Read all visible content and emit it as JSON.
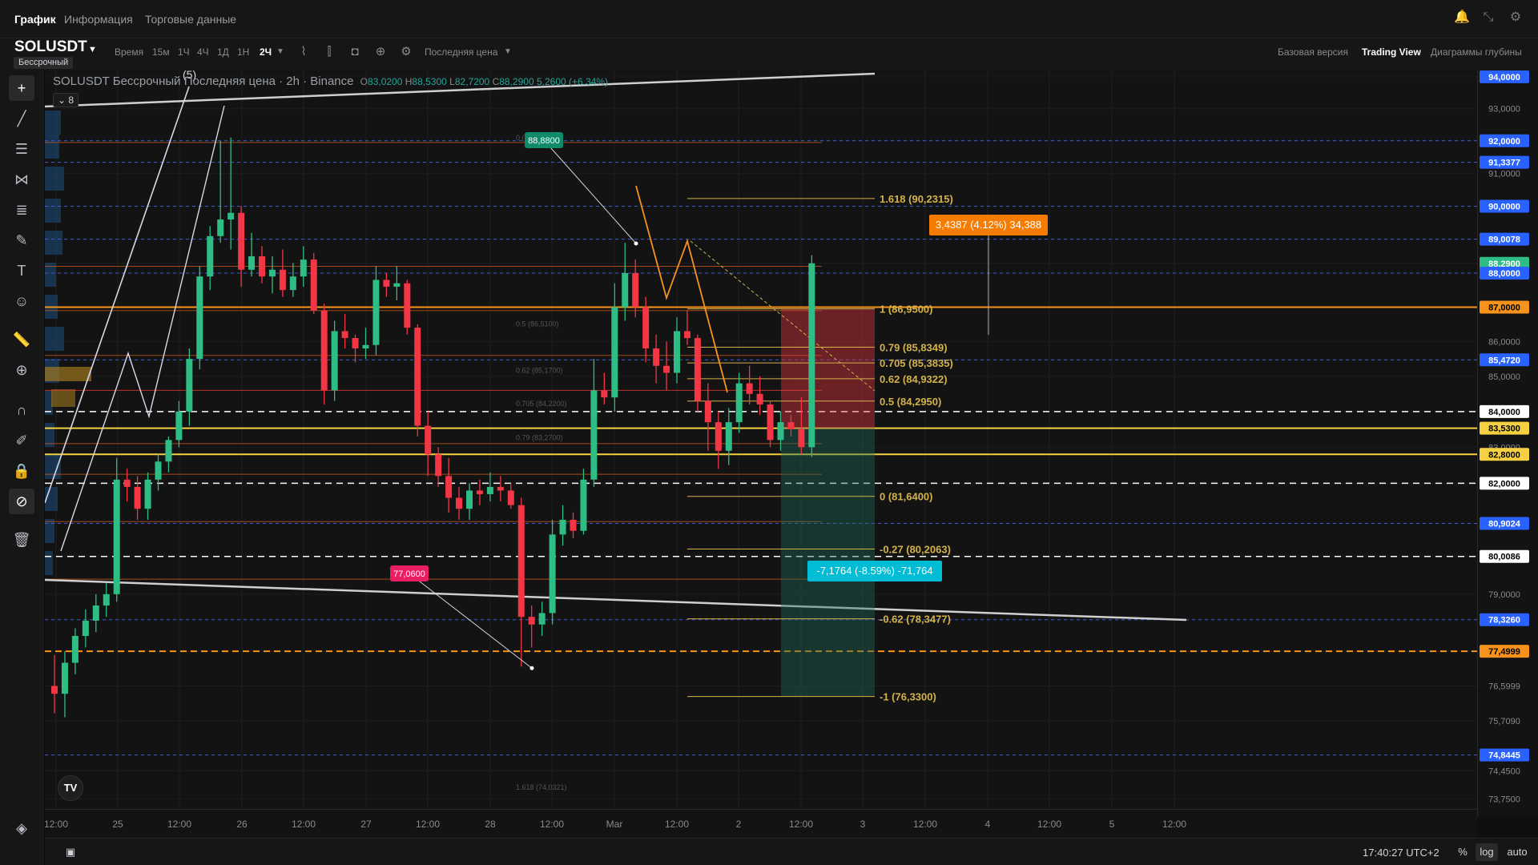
{
  "top_tabs": [
    {
      "label": "График"
    },
    {
      "label": "Информация"
    },
    {
      "label": "Торговые данные"
    }
  ],
  "toolbar": {
    "symbol": "SOLUSDT",
    "badge": "Бессрочный",
    "time_label": "Время",
    "intervals": [
      "15м",
      "1Ч",
      "4Ч",
      "1Д",
      "1Н",
      "2Ч"
    ],
    "active_interval": "2Ч",
    "price_type": "Последняя цена",
    "views": [
      "Базовая версия",
      "Trading View",
      "Диаграммы глубины"
    ],
    "active_view": "Trading View"
  },
  "legend": {
    "title": "SOLUSDT Бессрочный Последняя цена · 2h · Binance",
    "open_key": "O",
    "open": "83,0200",
    "high_key": "H",
    "high": "88,5300",
    "low_key": "L",
    "low": "82,7200",
    "close_key": "C",
    "close": "88,2900",
    "change": "5,2600 (+6.34%)",
    "collapse_count": "8",
    "wave_label": "(5)"
  },
  "colors": {
    "up": "#26a69a",
    "up_bright": "#2ebd85",
    "down": "#f23645",
    "orange": "#f7931a",
    "yellow": "#f5d142",
    "fib_gold": "#d4b24a",
    "blue_dash": "#3b5bdb",
    "teal": "#00bcd4"
  },
  "fib_levels": [
    {
      "label": "1.618 (90,2315)",
      "price": 90.2315
    },
    {
      "label": "1 (86,9500)",
      "price": 86.95
    },
    {
      "label": "0.79 (85,8349)",
      "price": 85.8349
    },
    {
      "label": "0.705 (85,3835)",
      "price": 85.3835
    },
    {
      "label": "0.62 (84,9322)",
      "price": 84.9322
    },
    {
      "label": "0.5 (84,2950)",
      "price": 84.295
    },
    {
      "label": "0 (81,6400)",
      "price": 81.64
    },
    {
      "label": "-0.27 (80,2063)",
      "price": 80.2063
    },
    {
      "label": "-0.62 (78,3477)",
      "price": 78.3477
    },
    {
      "label": "-1 (76,3300)",
      "price": 76.33
    }
  ],
  "faint_fib_levels": [
    {
      "label": "0 (92,0900)",
      "price": 92.09
    },
    {
      "label": "0.5 (86,5100)",
      "price": 86.51
    },
    {
      "label": "0.62 (85,1700)",
      "price": 85.17
    },
    {
      "label": "0.705 (84,2200)",
      "price": 84.22
    },
    {
      "label": "0.79 (83,2700)",
      "price": 83.27
    },
    {
      "label": "1.618 (74,0321)",
      "price": 74.0321
    }
  ],
  "price_labels": [
    {
      "text": "94,0000",
      "price": 94.0,
      "bg": "#2962ff",
      "fg": "#ffffff"
    },
    {
      "text": "93,0000",
      "price": 93.0
    },
    {
      "text": "92,0000",
      "price": 92.0,
      "bg": "#2962ff",
      "fg": "#ffffff"
    },
    {
      "text": "91,3377",
      "price": 91.3377,
      "bg": "#2962ff",
      "fg": "#ffffff"
    },
    {
      "text": "91,0000",
      "price": 91.0
    },
    {
      "text": "90,0000",
      "price": 90.0,
      "bg": "#2962ff",
      "fg": "#ffffff"
    },
    {
      "text": "89,0078",
      "price": 89.0078,
      "bg": "#2962ff",
      "fg": "#ffffff"
    },
    {
      "text": "88,2900",
      "price": 88.29,
      "bg": "#2ebd85",
      "fg": "#ffffff"
    },
    {
      "text": "88,0000",
      "price": 88.0,
      "bg": "#2962ff",
      "fg": "#ffffff"
    },
    {
      "text": "87,0000",
      "price": 87.0,
      "bg": "#f7931a",
      "fg": "#000000"
    },
    {
      "text": "86,0000",
      "price": 86.0
    },
    {
      "text": "85,4720",
      "price": 85.472,
      "bg": "#2962ff",
      "fg": "#ffffff"
    },
    {
      "text": "85,0000",
      "price": 85.0
    },
    {
      "text": "84,0000",
      "price": 84.0,
      "bg": "#ffffff",
      "fg": "#000000"
    },
    {
      "text": "83,5300",
      "price": 83.53,
      "bg": "#f5d142",
      "fg": "#000000"
    },
    {
      "text": "83,0000",
      "price": 83.0
    },
    {
      "text": "82,8000",
      "price": 82.8,
      "bg": "#f5d142",
      "fg": "#000000"
    },
    {
      "text": "82,0000",
      "price": 82.0,
      "bg": "#ffffff",
      "fg": "#000000"
    },
    {
      "text": "80,9024",
      "price": 80.9024,
      "bg": "#2962ff",
      "fg": "#ffffff"
    },
    {
      "text": "80,0086",
      "price": 80.0086,
      "bg": "#ffffff",
      "fg": "#000000"
    },
    {
      "text": "79,0000",
      "price": 79.0
    },
    {
      "text": "78,3260",
      "price": 78.326,
      "bg": "#2962ff",
      "fg": "#ffffff"
    },
    {
      "text": "77,4999",
      "price": 77.4999,
      "bg": "#f7931a",
      "fg": "#000000"
    },
    {
      "text": "76,5999",
      "price": 76.5999
    },
    {
      "text": "75,7090",
      "price": 75.709
    },
    {
      "text": "74,8445",
      "price": 74.8445,
      "bg": "#2962ff",
      "fg": "#ffffff"
    },
    {
      "text": "74,4500",
      "price": 74.45
    },
    {
      "text": "73,7500",
      "price": 73.75
    }
  ],
  "horizontal_lines": [
    {
      "price": 92.0,
      "style": "blue-dash"
    },
    {
      "price": 91.3377,
      "style": "blue-dash"
    },
    {
      "price": 90.0,
      "style": "blue-dash"
    },
    {
      "price": 89.0078,
      "style": "blue-dash"
    },
    {
      "price": 88.0,
      "style": "blue-dash"
    },
    {
      "price": 87.0,
      "style": "orange-solid"
    },
    {
      "price": 85.472,
      "style": "blue-dash"
    },
    {
      "price": 84.0,
      "style": "white-dash"
    },
    {
      "price": 83.53,
      "style": "yellow-solid"
    },
    {
      "price": 82.8,
      "style": "yellow-solid"
    },
    {
      "price": 82.0,
      "style": "white-dash"
    },
    {
      "price": 80.9024,
      "style": "blue-dash"
    },
    {
      "price": 80.0086,
      "style": "white-dash"
    },
    {
      "price": 78.326,
      "style": "blue-dash"
    },
    {
      "price": 77.4999,
      "style": "orange-dash"
    },
    {
      "price": 74.8445,
      "style": "blue-dash"
    }
  ],
  "callouts": {
    "high_label": "88,8800",
    "low_label": "77,0600",
    "profit_label": "3,4387 (4.12%) 34,388",
    "loss_label": "-7,1764 (-8.59%) -71,764"
  },
  "time_labels": [
    "12:00",
    "25",
    "12:00",
    "26",
    "12:00",
    "27",
    "12:00",
    "28",
    "12:00",
    "Mar",
    "12:00",
    "2",
    "12:00",
    "3",
    "12:00",
    "4",
    "12:00",
    "5",
    "12:00"
  ],
  "chart_data": {
    "type": "candlestick",
    "symbol": "SOLUSDT",
    "interval": "2h",
    "ylim": [
      73.5,
      94.2
    ],
    "candles": [
      {
        "o": 76.6,
        "h": 77.4,
        "l": 75.9,
        "c": 76.4
      },
      {
        "o": 76.4,
        "h": 77.5,
        "l": 75.8,
        "c": 77.2
      },
      {
        "o": 77.2,
        "h": 78.1,
        "l": 76.9,
        "c": 77.9
      },
      {
        "o": 77.9,
        "h": 78.6,
        "l": 77.6,
        "c": 78.3
      },
      {
        "o": 78.3,
        "h": 79.0,
        "l": 78.0,
        "c": 78.7
      },
      {
        "o": 78.7,
        "h": 79.3,
        "l": 78.4,
        "c": 79.0
      },
      {
        "o": 79.0,
        "h": 82.7,
        "l": 78.8,
        "c": 82.1
      },
      {
        "o": 82.1,
        "h": 82.4,
        "l": 81.5,
        "c": 81.9
      },
      {
        "o": 81.9,
        "h": 82.2,
        "l": 81.0,
        "c": 81.3
      },
      {
        "o": 81.3,
        "h": 82.3,
        "l": 81.0,
        "c": 82.1
      },
      {
        "o": 82.1,
        "h": 82.8,
        "l": 81.8,
        "c": 82.6
      },
      {
        "o": 82.6,
        "h": 83.3,
        "l": 82.3,
        "c": 83.2
      },
      {
        "o": 83.2,
        "h": 84.3,
        "l": 83.0,
        "c": 84.0
      },
      {
        "o": 84.0,
        "h": 85.8,
        "l": 83.6,
        "c": 85.5
      },
      {
        "o": 85.5,
        "h": 88.2,
        "l": 85.2,
        "c": 87.9
      },
      {
        "o": 87.9,
        "h": 89.4,
        "l": 87.5,
        "c": 89.1
      },
      {
        "o": 89.1,
        "h": 92.0,
        "l": 88.9,
        "c": 89.6
      },
      {
        "o": 89.6,
        "h": 92.1,
        "l": 88.7,
        "c": 89.8
      },
      {
        "o": 89.8,
        "h": 90.0,
        "l": 87.6,
        "c": 88.1
      },
      {
        "o": 88.1,
        "h": 89.2,
        "l": 87.9,
        "c": 88.5
      },
      {
        "o": 88.5,
        "h": 88.8,
        "l": 87.7,
        "c": 87.9
      },
      {
        "o": 87.9,
        "h": 88.5,
        "l": 87.4,
        "c": 88.1
      },
      {
        "o": 88.1,
        "h": 88.7,
        "l": 87.3,
        "c": 87.5
      },
      {
        "o": 87.5,
        "h": 88.3,
        "l": 87.3,
        "c": 87.9
      },
      {
        "o": 87.9,
        "h": 88.8,
        "l": 87.6,
        "c": 88.4
      },
      {
        "o": 88.4,
        "h": 88.6,
        "l": 86.8,
        "c": 86.9
      },
      {
        "o": 86.9,
        "h": 87.1,
        "l": 84.2,
        "c": 84.6
      },
      {
        "o": 84.6,
        "h": 86.6,
        "l": 84.3,
        "c": 86.3
      },
      {
        "o": 86.3,
        "h": 86.8,
        "l": 85.8,
        "c": 86.1
      },
      {
        "o": 86.1,
        "h": 86.2,
        "l": 85.4,
        "c": 85.8
      },
      {
        "o": 85.8,
        "h": 86.4,
        "l": 85.5,
        "c": 85.9
      },
      {
        "o": 85.9,
        "h": 88.2,
        "l": 85.6,
        "c": 87.8
      },
      {
        "o": 87.8,
        "h": 88.0,
        "l": 87.3,
        "c": 87.6
      },
      {
        "o": 87.6,
        "h": 88.2,
        "l": 87.2,
        "c": 87.7
      },
      {
        "o": 87.7,
        "h": 87.8,
        "l": 86.2,
        "c": 86.4
      },
      {
        "o": 86.4,
        "h": 86.5,
        "l": 83.3,
        "c": 83.6
      },
      {
        "o": 83.6,
        "h": 84.0,
        "l": 82.2,
        "c": 82.8
      },
      {
        "o": 82.8,
        "h": 83.0,
        "l": 81.9,
        "c": 82.2
      },
      {
        "o": 82.2,
        "h": 82.7,
        "l": 81.2,
        "c": 81.6
      },
      {
        "o": 81.6,
        "h": 81.9,
        "l": 81.0,
        "c": 81.3
      },
      {
        "o": 81.3,
        "h": 82.0,
        "l": 81.0,
        "c": 81.8
      },
      {
        "o": 81.8,
        "h": 82.1,
        "l": 81.4,
        "c": 81.7
      },
      {
        "o": 81.7,
        "h": 82.3,
        "l": 81.5,
        "c": 81.9
      },
      {
        "o": 81.9,
        "h": 82.2,
        "l": 81.5,
        "c": 81.8
      },
      {
        "o": 81.8,
        "h": 82.0,
        "l": 81.3,
        "c": 81.4
      },
      {
        "o": 81.4,
        "h": 81.6,
        "l": 77.1,
        "c": 78.4
      },
      {
        "o": 78.4,
        "h": 78.7,
        "l": 77.6,
        "c": 78.2
      },
      {
        "o": 78.2,
        "h": 78.8,
        "l": 77.9,
        "c": 78.5
      },
      {
        "o": 78.5,
        "h": 81.0,
        "l": 78.2,
        "c": 80.6
      },
      {
        "o": 80.6,
        "h": 81.4,
        "l": 80.3,
        "c": 81.0
      },
      {
        "o": 81.0,
        "h": 81.2,
        "l": 80.5,
        "c": 80.7
      },
      {
        "o": 80.7,
        "h": 82.4,
        "l": 80.6,
        "c": 82.1
      },
      {
        "o": 82.1,
        "h": 85.5,
        "l": 81.9,
        "c": 84.6
      },
      {
        "o": 84.6,
        "h": 85.1,
        "l": 84.2,
        "c": 84.4
      },
      {
        "o": 84.4,
        "h": 87.7,
        "l": 84.0,
        "c": 87.0
      },
      {
        "o": 87.0,
        "h": 88.9,
        "l": 86.6,
        "c": 88.0
      },
      {
        "o": 88.0,
        "h": 88.4,
        "l": 86.7,
        "c": 87.0
      },
      {
        "o": 87.0,
        "h": 87.3,
        "l": 85.4,
        "c": 85.8
      },
      {
        "o": 85.8,
        "h": 86.2,
        "l": 84.8,
        "c": 85.3
      },
      {
        "o": 85.3,
        "h": 86.0,
        "l": 84.6,
        "c": 85.1
      },
      {
        "o": 85.1,
        "h": 86.7,
        "l": 84.8,
        "c": 86.3
      },
      {
        "o": 86.3,
        "h": 86.9,
        "l": 85.9,
        "c": 86.1
      },
      {
        "o": 86.1,
        "h": 86.2,
        "l": 84.0,
        "c": 84.3
      },
      {
        "o": 84.3,
        "h": 84.8,
        "l": 82.9,
        "c": 83.7
      },
      {
        "o": 83.7,
        "h": 84.0,
        "l": 82.4,
        "c": 82.9
      },
      {
        "o": 82.9,
        "h": 84.1,
        "l": 82.5,
        "c": 83.7
      },
      {
        "o": 83.7,
        "h": 85.1,
        "l": 83.4,
        "c": 84.8
      },
      {
        "o": 84.8,
        "h": 85.3,
        "l": 84.2,
        "c": 84.5
      },
      {
        "o": 84.5,
        "h": 85.0,
        "l": 83.9,
        "c": 84.2
      },
      {
        "o": 84.2,
        "h": 84.3,
        "l": 83.0,
        "c": 83.2
      },
      {
        "o": 83.2,
        "h": 84.0,
        "l": 82.9,
        "c": 83.7
      },
      {
        "o": 83.7,
        "h": 83.9,
        "l": 83.3,
        "c": 83.5
      },
      {
        "o": 83.5,
        "h": 84.4,
        "l": 82.8,
        "c": 83.0
      },
      {
        "o": 83.0,
        "h": 88.53,
        "l": 82.72,
        "c": 88.29
      }
    ]
  }
}
